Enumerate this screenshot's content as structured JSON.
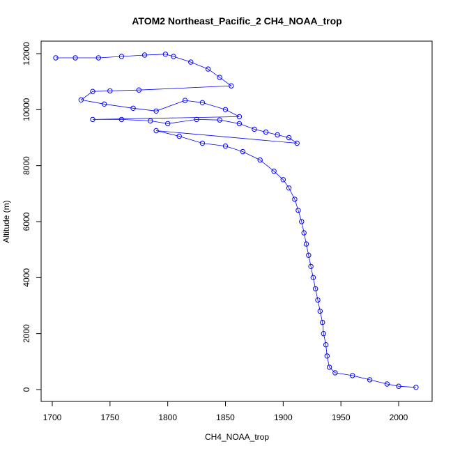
{
  "chart_data": {
    "type": "scatter",
    "title": "ATOM2 Northeast_Pacific_2 CH4_NOAA_trop",
    "xlabel": "CH4_NOAA_trop",
    "ylabel": "Altitude (m)",
    "xlim": [
      1700,
      2015
    ],
    "ylim": [
      0,
      12000
    ],
    "xticks": [
      1700,
      1750,
      1800,
      1850,
      1900,
      1950,
      2000
    ],
    "yticks": [
      0,
      2000,
      4000,
      6000,
      8000,
      10000,
      12000
    ],
    "xtick_labels": [
      "1700",
      "1750",
      "1800",
      "1850",
      "1900",
      "1950",
      "2000"
    ],
    "ytick_labels": [
      "0",
      "2000",
      "4000",
      "6000",
      "8000",
      "10000",
      "12000"
    ],
    "grid": false,
    "marker": "open-circle",
    "color": "#0000ff",
    "connected": true,
    "profile": [
      [
        1703,
        11850
      ],
      [
        1720,
        11850
      ],
      [
        1740,
        11850
      ],
      [
        1760,
        11900
      ],
      [
        1780,
        11950
      ],
      [
        1798,
        11980
      ],
      [
        1805,
        11900
      ],
      [
        1820,
        11700
      ],
      [
        1835,
        11450
      ],
      [
        1845,
        11150
      ],
      [
        1855,
        10850
      ],
      [
        1775,
        10700
      ],
      [
        1750,
        10670
      ],
      [
        1735,
        10650
      ],
      [
        1725,
        10350
      ],
      [
        1745,
        10200
      ],
      [
        1770,
        10050
      ],
      [
        1790,
        9950
      ],
      [
        1815,
        10330
      ],
      [
        1830,
        10250
      ],
      [
        1850,
        10000
      ],
      [
        1862,
        9750
      ],
      [
        1735,
        9650
      ],
      [
        1760,
        9650
      ],
      [
        1785,
        9600
      ],
      [
        1800,
        9500
      ],
      [
        1825,
        9650
      ],
      [
        1845,
        9630
      ],
      [
        1862,
        9500
      ],
      [
        1875,
        9300
      ],
      [
        1885,
        9200
      ],
      [
        1895,
        9100
      ],
      [
        1905,
        9000
      ],
      [
        1912,
        8800
      ],
      [
        1790,
        9250
      ],
      [
        1810,
        9050
      ],
      [
        1830,
        8800
      ],
      [
        1850,
        8700
      ],
      [
        1865,
        8500
      ],
      [
        1880,
        8200
      ],
      [
        1892,
        7800
      ],
      [
        1900,
        7500
      ],
      [
        1905,
        7200
      ],
      [
        1910,
        6800
      ],
      [
        1913,
        6400
      ],
      [
        1916,
        6000
      ],
      [
        1918,
        5600
      ],
      [
        1920,
        5200
      ],
      [
        1922,
        4800
      ],
      [
        1924,
        4400
      ],
      [
        1926,
        4000
      ],
      [
        1928,
        3600
      ],
      [
        1930,
        3200
      ],
      [
        1932,
        2800
      ],
      [
        1934,
        2400
      ],
      [
        1935,
        2000
      ],
      [
        1937,
        1600
      ],
      [
        1938,
        1200
      ],
      [
        1940,
        800
      ],
      [
        1945,
        600
      ],
      [
        1960,
        500
      ],
      [
        1975,
        350
      ],
      [
        1990,
        200
      ],
      [
        2000,
        120
      ],
      [
        2015,
        80
      ]
    ]
  }
}
